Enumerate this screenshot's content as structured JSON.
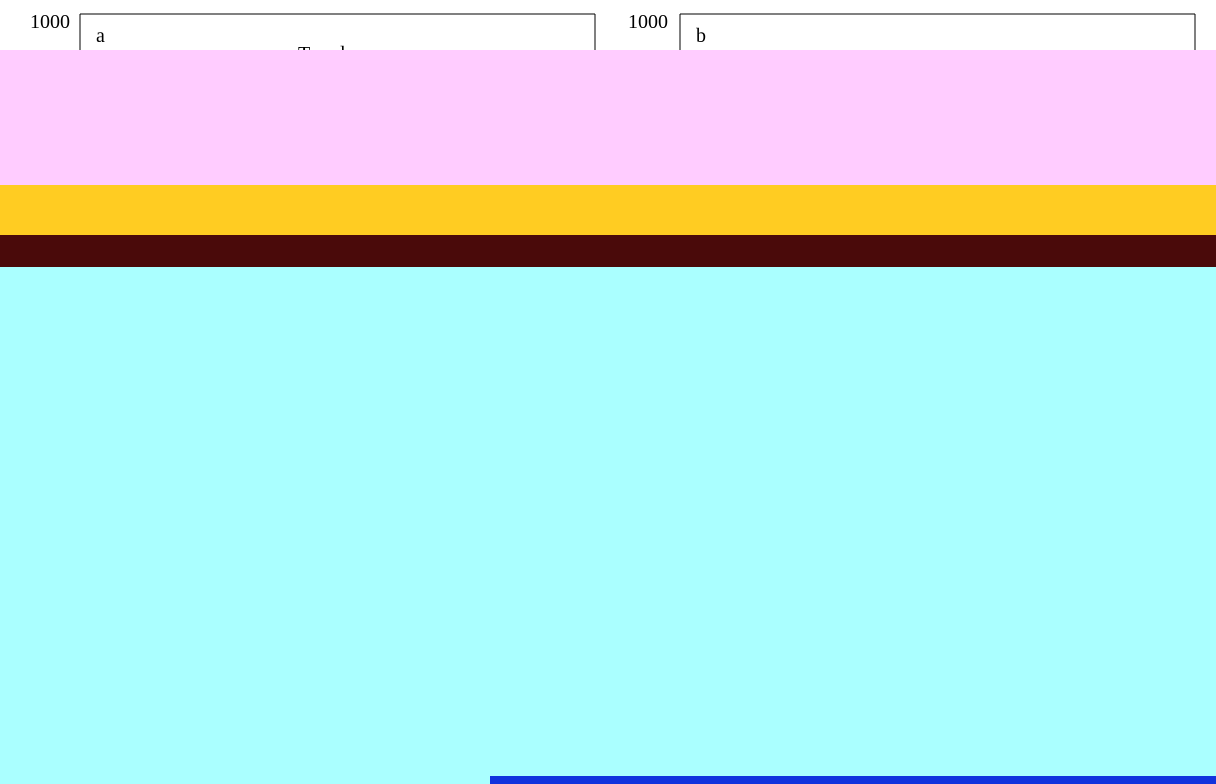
{
  "panels": [
    {
      "label": "a",
      "y_tick": "1000",
      "title": "Trend"
    },
    {
      "label": "b",
      "y_tick": "1000"
    }
  ]
}
